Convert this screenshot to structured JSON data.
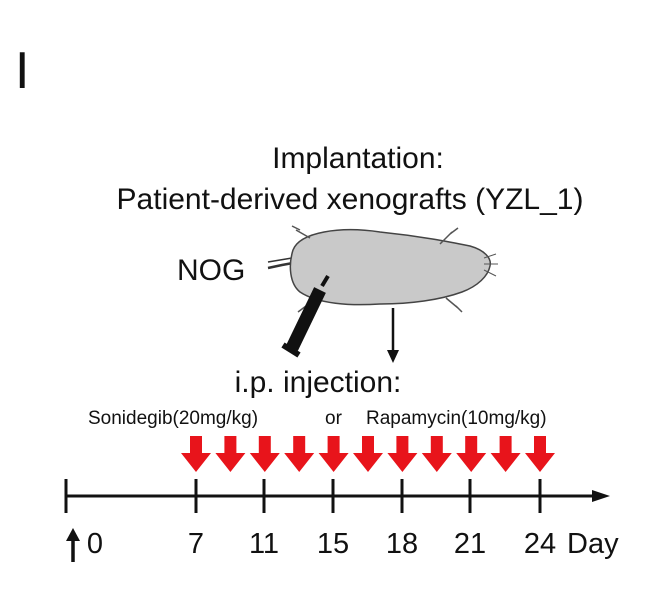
{
  "panel_label": "I",
  "title_line1": "Implantation:",
  "title_line2": "Patient-derived xenografts (YZL_1)",
  "mouse_label": "NOG",
  "injection_title": "i.p. injection:",
  "drug_a": "Sonidegib(20mg/kg)",
  "or_word": "or",
  "drug_b": "Rapamycin(10mg/kg)",
  "axis_unit": "Day",
  "tick_labels": [
    "0",
    "7",
    "11",
    "15",
    "18",
    "21",
    "24"
  ],
  "injection_count": 11,
  "colors": {
    "injection_arrow": "#e8141b",
    "mouse_body": "#c9c9c9",
    "ink": "#111111"
  },
  "icons": [
    "mouse-icon",
    "syringe-icon",
    "down-arrow-icon",
    "up-arrow-icon"
  ]
}
